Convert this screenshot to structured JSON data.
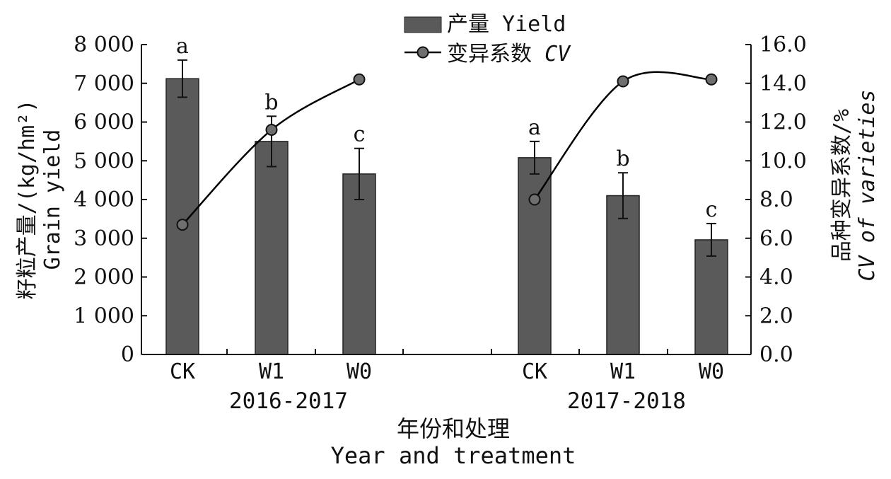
{
  "chart_data": {
    "type": "bar",
    "title": "",
    "legend": {
      "placement": "top-center",
      "bar_label": "产量 Yield",
      "line_label_cn": "变异系数",
      "line_label_en": "CV"
    },
    "groups": [
      {
        "name": "2016-2017",
        "categories": [
          "CK",
          "W1",
          "W0"
        ]
      },
      {
        "name": "2017-2018",
        "categories": [
          "CK",
          "W1",
          "W0"
        ]
      }
    ],
    "series": [
      {
        "name": "产量 Yield",
        "type": "bar",
        "axis": "left",
        "values": [
          7120,
          5500,
          4660,
          5080,
          4100,
          2960
        ],
        "errors": [
          480,
          650,
          660,
          420,
          590,
          420
        ],
        "labels": [
          "a",
          "b",
          "c",
          "a",
          "b",
          "c"
        ]
      },
      {
        "name": "变异系数 CV",
        "type": "line",
        "axis": "right",
        "values": [
          6.7,
          11.6,
          14.2,
          8.0,
          14.1,
          14.2
        ]
      }
    ],
    "y_left": {
      "label_cn": "籽粒产量/(kg/hm²)",
      "label_en": "Grain yield",
      "ylim": [
        0,
        8000
      ],
      "ticks": [
        "0",
        "1 000",
        "2 000",
        "3 000",
        "4 000",
        "5 000",
        "6 000",
        "7 000",
        "8 000"
      ]
    },
    "y_right": {
      "label_cn": "品种变异系数/%",
      "label_en": "CV of varieties",
      "ylim": [
        0,
        16
      ],
      "ticks": [
        "0.0",
        "2.0",
        "4.0",
        "6.0",
        "8.0",
        "10.0",
        "12.0",
        "14.0",
        "16.0"
      ]
    },
    "x_label_cn": "年份和处理",
    "x_label_en": "Year and treatment",
    "grid": false,
    "colors": {
      "bar": "#5a5a5a",
      "line": "#000000",
      "marker": "#6f6f6f"
    }
  }
}
